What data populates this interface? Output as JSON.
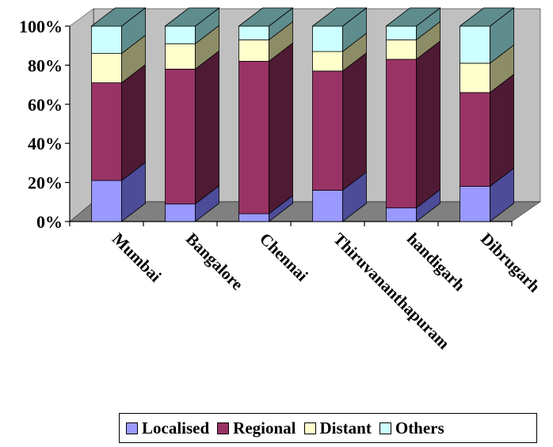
{
  "chart_data": {
    "type": "bar",
    "stacked": true,
    "percent": true,
    "categories": [
      "Mumbai",
      "Bangalore",
      "Chennai",
      "Thiruvananthapuram",
      "handigarh",
      "Dibrugarh"
    ],
    "series": [
      {
        "name": "Localised",
        "color": "#9999ff",
        "side_color": "#4c4c99",
        "values": [
          21,
          9,
          4,
          16,
          7,
          18
        ]
      },
      {
        "name": "Regional",
        "color": "#993366",
        "side_color": "#4f1a34",
        "values": [
          50,
          69,
          78,
          61,
          76,
          48
        ]
      },
      {
        "name": "Distant",
        "color": "#ffffcc",
        "side_color": "#8c8c66",
        "values": [
          15,
          13,
          11,
          10,
          10,
          15
        ]
      },
      {
        "name": "Others",
        "color": "#ccffff",
        "side_color": "#5f8c8c",
        "values": [
          14,
          9,
          7,
          13,
          7,
          19
        ]
      }
    ],
    "y_ticks": [
      "0%",
      "20%",
      "40%",
      "60%",
      "80%",
      "100%"
    ],
    "ylim": [
      0,
      100
    ],
    "legend_position": "bottom-right"
  }
}
